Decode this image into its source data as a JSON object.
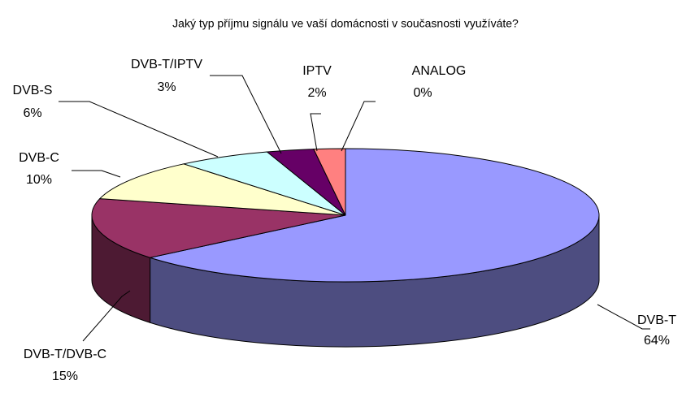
{
  "chart_data": {
    "type": "pie3d",
    "title": "Jaký typ příjmu signálu ve vaší domácnosti v současnosti využíváte?",
    "categories": [
      "DVB-T",
      "DVB-T/DVB-C",
      "DVB-C",
      "DVB-S",
      "DVB-T/IPTV",
      "IPTV",
      "ANALOG"
    ],
    "values": [
      64,
      15,
      10,
      6,
      3,
      2,
      0
    ],
    "value_labels": [
      "64%",
      "15%",
      "10%",
      "6%",
      "3%",
      "2%",
      "0%"
    ],
    "colors": [
      "#9999ff",
      "#993366",
      "#ffffcc",
      "#ccffff",
      "#660066",
      "#ff8080",
      "#0066cc"
    ]
  }
}
